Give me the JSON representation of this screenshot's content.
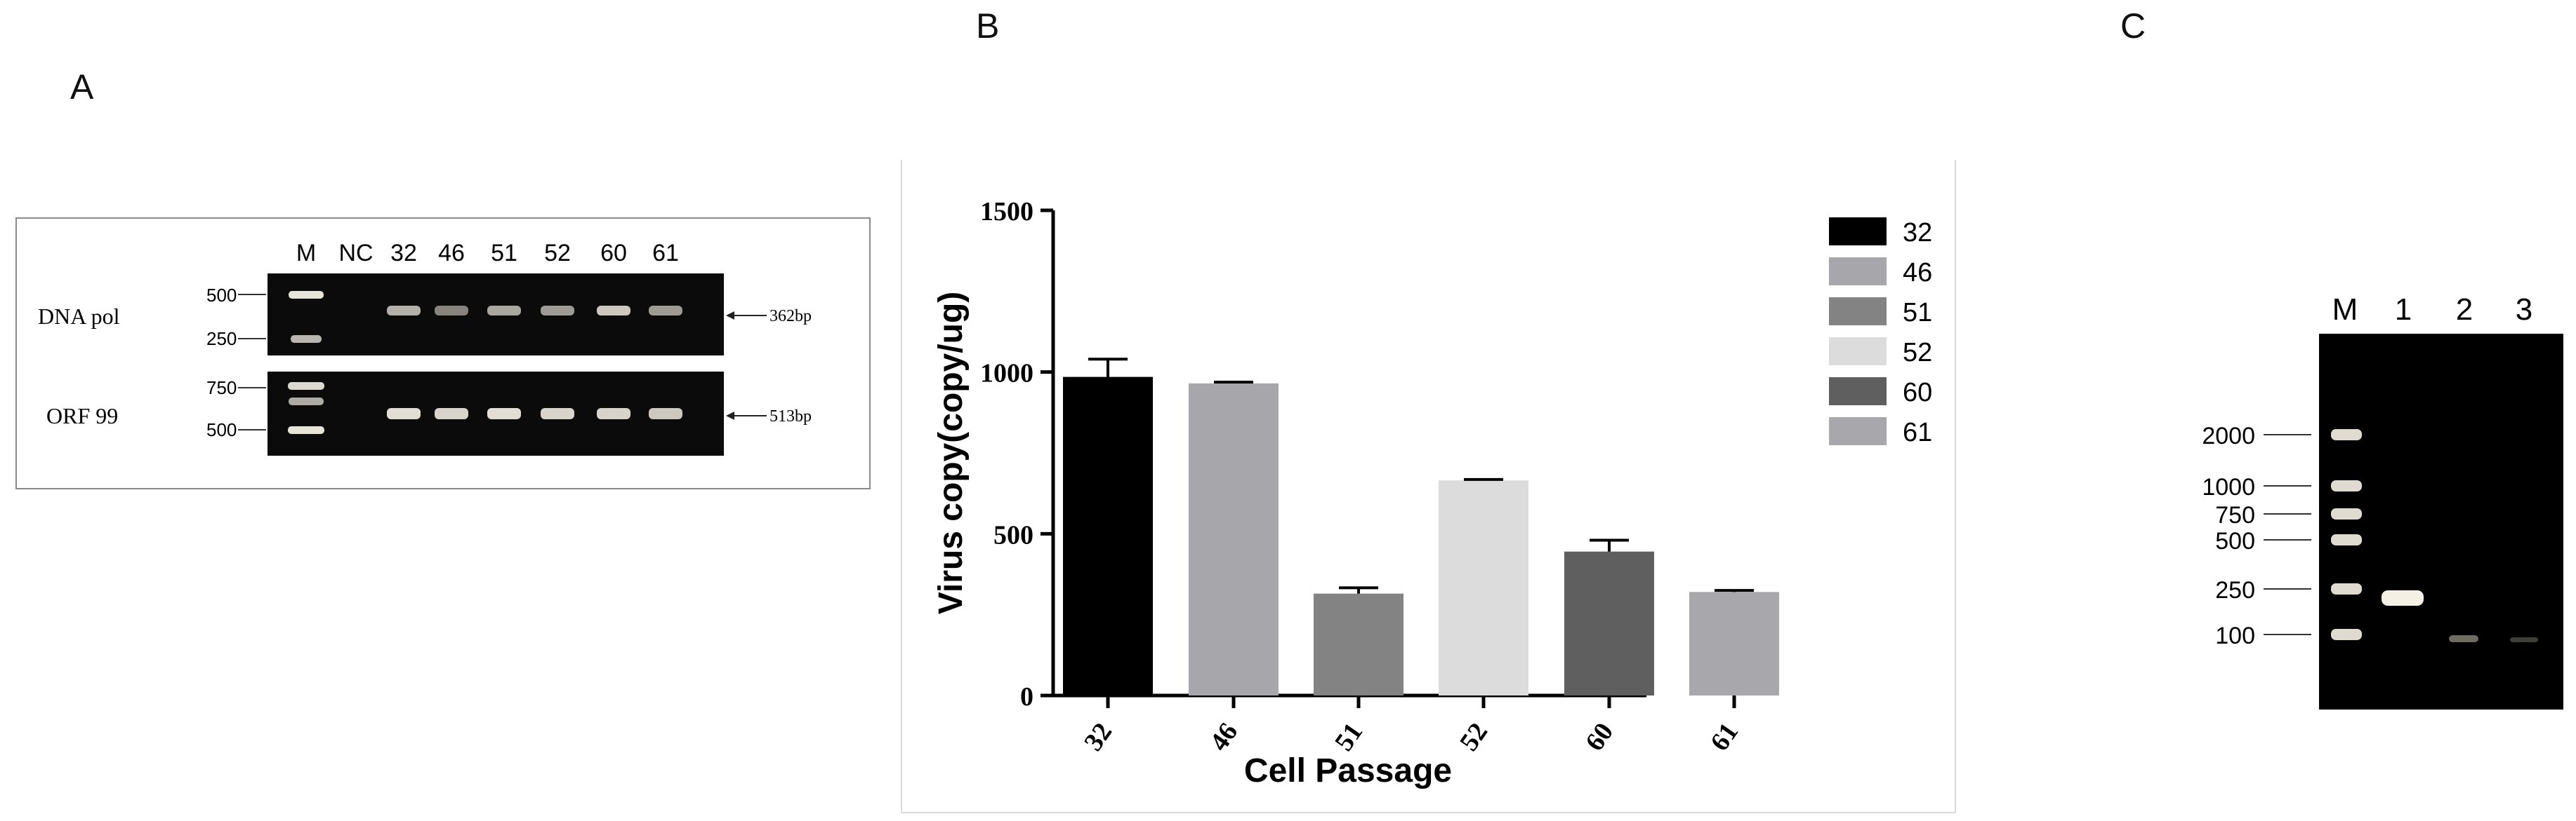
{
  "panel_a": {
    "letter": "A",
    "lane_labels": [
      "M",
      "NC",
      "32",
      "46",
      "51",
      "52",
      "60",
      "61"
    ],
    "rows": [
      {
        "name": "DNA pol",
        "marker_top": "500",
        "marker_bottom": "250",
        "product": "362bp",
        "band_intensity": [
          0,
          0.75,
          0.55,
          0.7,
          0.65,
          0.85,
          0.65
        ]
      },
      {
        "name": "ORF 99",
        "marker_top": "750",
        "marker_bottom": "500",
        "product": "513bp",
        "band_intensity": [
          0,
          0.95,
          0.9,
          0.95,
          0.9,
          0.9,
          0.85
        ]
      }
    ]
  },
  "panel_b": {
    "letter": "B",
    "chart_data": {
      "type": "bar",
      "categories": [
        "32",
        "46",
        "51",
        "52",
        "60",
        "61"
      ],
      "values": [
        985,
        965,
        315,
        665,
        445,
        320
      ],
      "errors": [
        55,
        4,
        18,
        3,
        35,
        5
      ],
      "colors": [
        "#000000",
        "#a7a7ab",
        "#838383",
        "#dcdcdc",
        "#5f5f5f",
        "#a8a8ac"
      ],
      "xlabel": "Cell Passage",
      "ylabel": "Virus copy(copy/ug)",
      "ylim": [
        0,
        1500
      ],
      "yticks": [
        "0",
        "500",
        "1000",
        "1500"
      ],
      "legend": [
        "32",
        "46",
        "51",
        "52",
        "60",
        "61"
      ],
      "legend_position": "top-right",
      "grid": false
    }
  },
  "panel_c": {
    "letter": "C",
    "lane_labels": [
      "M",
      "1",
      "2",
      "3"
    ],
    "ladder_labels": [
      "2000",
      "1000",
      "750",
      "500",
      "250",
      "100"
    ]
  }
}
